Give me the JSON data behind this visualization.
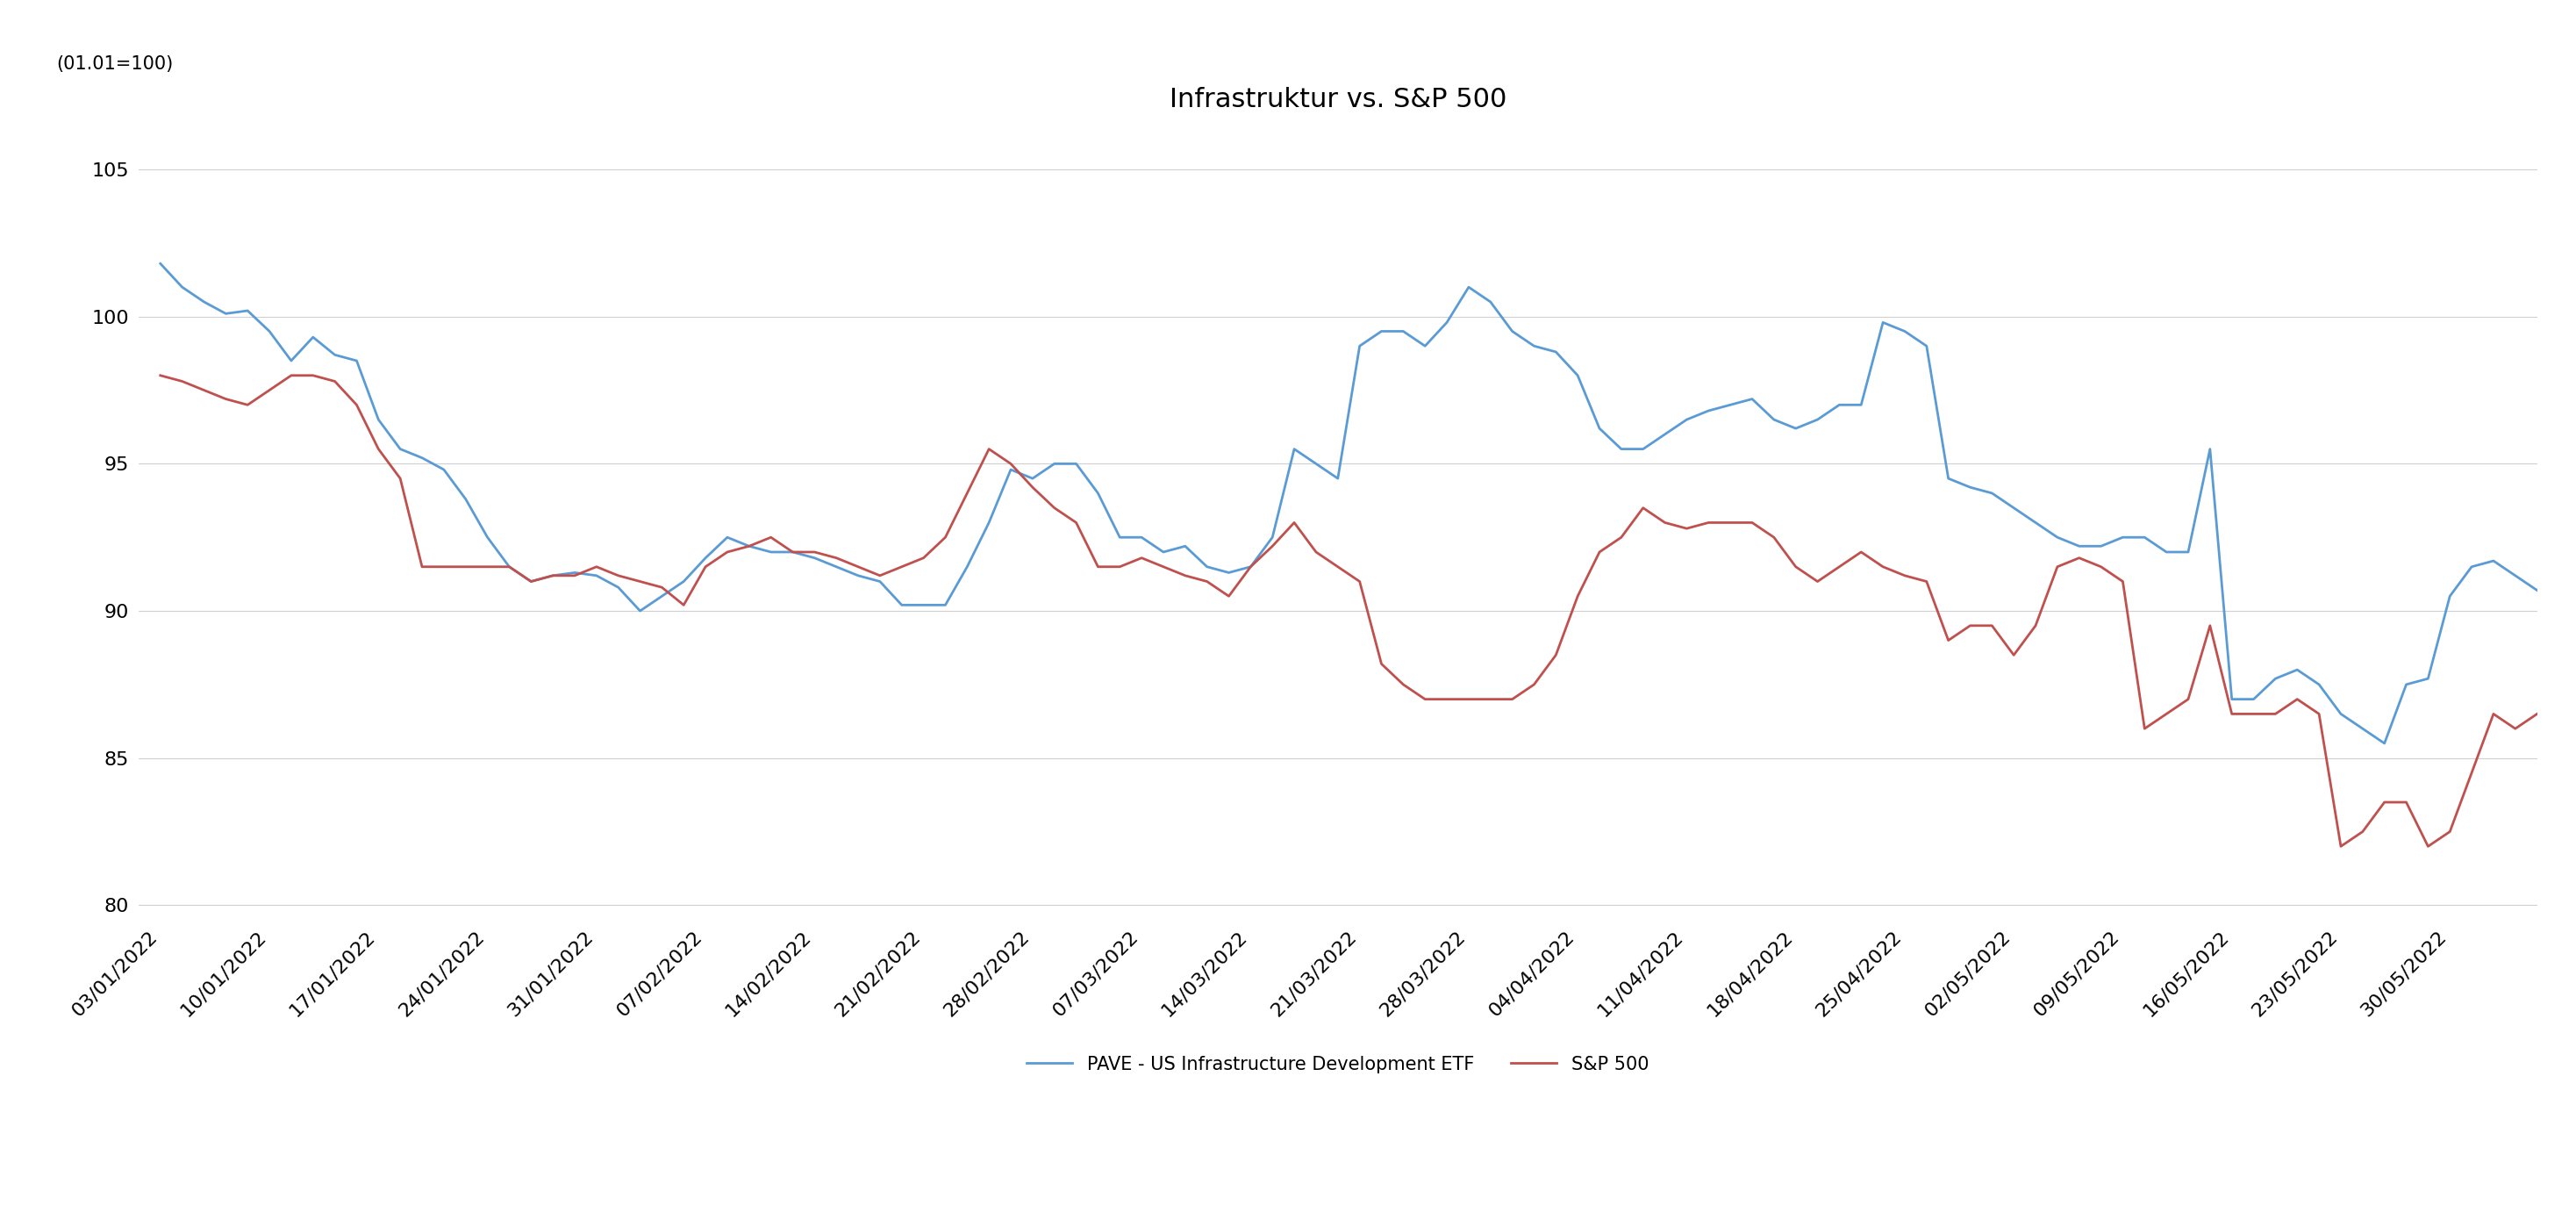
{
  "title": "Infrastruktur vs. S&P 500",
  "subtitle": "(01.01=100)",
  "ylim": [
    79.5,
    106.5
  ],
  "yticks": [
    80,
    85,
    90,
    95,
    100,
    105
  ],
  "legend_labels": [
    "PAVE - US Infrastructure Development ETF",
    "S&P 500"
  ],
  "line_colors": [
    "#5B9BD5",
    "#C0504D"
  ],
  "x_labels": [
    "03/01/2022",
    "10/01/2022",
    "17/01/2022",
    "24/01/2022",
    "31/01/2022",
    "07/02/2022",
    "14/02/2022",
    "21/02/2022",
    "28/02/2022",
    "07/03/2022",
    "14/03/2022",
    "21/03/2022",
    "28/03/2022",
    "04/04/2022",
    "11/04/2022",
    "18/04/2022",
    "25/04/2022",
    "02/05/2022",
    "09/05/2022",
    "16/05/2022",
    "23/05/2022",
    "30/05/2022"
  ],
  "pave": [
    101.8,
    101.0,
    100.5,
    100.1,
    100.2,
    99.5,
    98.5,
    99.3,
    98.7,
    98.5,
    96.5,
    95.5,
    95.2,
    94.8,
    93.8,
    92.5,
    91.5,
    91.0,
    91.2,
    91.3,
    91.2,
    90.8,
    90.0,
    90.5,
    91.0,
    91.8,
    92.5,
    92.2,
    92.0,
    92.0,
    91.8,
    91.5,
    91.2,
    91.0,
    90.2,
    90.2,
    90.2,
    91.5,
    93.0,
    94.8,
    94.5,
    95.0,
    95.0,
    94.0,
    92.5,
    92.5,
    92.0,
    92.2,
    91.5,
    91.3,
    91.5,
    92.5,
    95.5,
    95.0,
    94.5,
    99.0,
    99.5,
    99.5,
    99.0,
    99.8,
    101.0,
    100.5,
    99.5,
    99.0,
    98.8,
    98.0,
    96.2,
    95.5,
    95.5,
    96.0,
    96.5,
    96.8,
    97.0,
    97.2,
    96.5,
    96.2,
    96.5,
    97.0,
    97.0,
    99.8,
    99.5,
    99.0,
    94.5,
    94.2,
    94.0,
    93.5,
    93.0,
    92.5,
    92.2,
    92.2,
    92.5,
    92.5,
    92.0,
    92.0,
    95.5,
    87.0,
    87.0,
    87.7,
    88.0,
    87.5,
    86.5,
    86.0,
    85.5,
    87.5,
    87.7,
    90.5,
    91.5,
    91.7,
    91.2,
    90.7
  ],
  "sp500": [
    98.0,
    97.8,
    97.5,
    97.2,
    97.0,
    97.5,
    98.0,
    98.0,
    97.8,
    97.0,
    95.5,
    94.5,
    91.5,
    91.5,
    91.5,
    91.5,
    91.5,
    91.0,
    91.2,
    91.2,
    91.5,
    91.2,
    91.0,
    90.8,
    90.2,
    91.5,
    92.0,
    92.2,
    92.5,
    92.0,
    92.0,
    91.8,
    91.5,
    91.2,
    91.5,
    91.8,
    92.5,
    94.0,
    95.5,
    95.0,
    94.2,
    93.5,
    93.0,
    91.5,
    91.5,
    91.8,
    91.5,
    91.2,
    91.0,
    90.5,
    91.5,
    92.2,
    93.0,
    92.0,
    91.5,
    91.0,
    88.2,
    87.5,
    87.0,
    87.0,
    87.0,
    87.0,
    87.0,
    87.5,
    88.5,
    90.5,
    92.0,
    92.5,
    93.5,
    93.0,
    92.8,
    93.0,
    93.0,
    93.0,
    92.5,
    91.5,
    91.0,
    91.5,
    92.0,
    91.5,
    91.2,
    91.0,
    89.0,
    89.5,
    89.5,
    88.5,
    89.5,
    91.5,
    91.8,
    91.5,
    91.0,
    86.0,
    86.5,
    87.0,
    89.5,
    86.5,
    86.5,
    86.5,
    87.0,
    86.5,
    82.0,
    82.5,
    83.5,
    83.5,
    82.0,
    82.5,
    84.5,
    86.5,
    86.0,
    86.5
  ],
  "background_color": "#ffffff",
  "grid_color": "#d0d0d0",
  "tick_label_fontsize": 16,
  "title_fontsize": 22,
  "subtitle_fontsize": 15,
  "line_width": 2.0
}
